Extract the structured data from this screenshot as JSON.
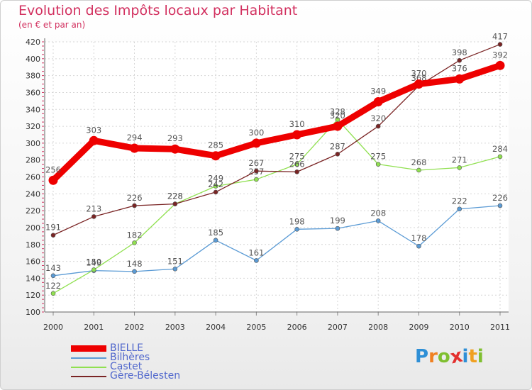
{
  "header": {
    "title": "Evolution des Impôts locaux par Habitant",
    "subtitle": "(en € et par an)"
  },
  "brand": {
    "text": "Proxiti",
    "colors": [
      "#2e8fd6",
      "#f08020",
      "#7fbf30",
      "#e3302e",
      "#2e8fd6",
      "#f0a020",
      "#7fbf30"
    ]
  },
  "chart_data": {
    "type": "line",
    "title": "Evolution des Impôts locaux par Habitant",
    "subtitle": "(en € et par an)",
    "xlabel": "",
    "ylabel": "",
    "x": [
      "2000",
      "2001",
      "2002",
      "2003",
      "2004",
      "2005",
      "2006",
      "2007",
      "2008",
      "2009",
      "2010",
      "2011"
    ],
    "ylim": [
      100,
      420
    ],
    "yticks": [
      100,
      120,
      140,
      160,
      180,
      200,
      220,
      240,
      260,
      280,
      300,
      320,
      340,
      360,
      380,
      400,
      420
    ],
    "grid": true,
    "legend_position": "bottom-left",
    "series": [
      {
        "name": "BIELLE",
        "color": "#ee0000",
        "bold": true,
        "values": [
          256,
          303,
          294,
          293,
          285,
          300,
          310,
          320,
          349,
          370,
          376,
          392
        ]
      },
      {
        "name": "Bilhères",
        "color": "#5b9bd5",
        "bold": false,
        "values": [
          143,
          149,
          148,
          151,
          185,
          161,
          198,
          199,
          208,
          178,
          222,
          226
        ]
      },
      {
        "name": "Castet",
        "color": "#90e050",
        "bold": false,
        "values": [
          122,
          150,
          182,
          228,
          249,
          257,
          275,
          328,
          275,
          268,
          271,
          284
        ]
      },
      {
        "name": "Gère-Bélesten",
        "color": "#7a2424",
        "bold": false,
        "values": [
          191,
          213,
          226,
          228,
          242,
          267,
          266,
          287,
          320,
          368,
          398,
          417
        ]
      }
    ]
  }
}
